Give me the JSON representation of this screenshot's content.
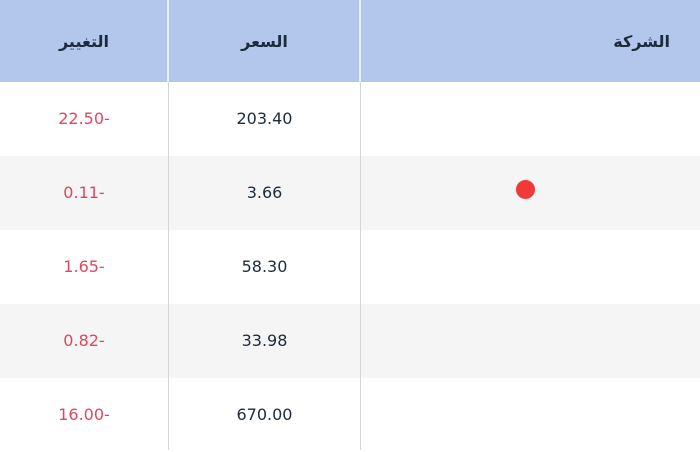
{
  "header": {
    "change": "التغيير",
    "price": "السعر",
    "company": "الشركة"
  },
  "colors": {
    "header_bg": "#b3c7ec",
    "negative": "#e0475f",
    "indicator": "#f03a3a"
  },
  "rows": [
    {
      "change": "22.50-",
      "price": "203.40",
      "company": "",
      "indicator": false
    },
    {
      "change": "0.11-",
      "price": "3.66",
      "company": "",
      "indicator": true
    },
    {
      "change": "1.65-",
      "price": "58.30",
      "company": "",
      "indicator": false
    },
    {
      "change": "0.82-",
      "price": "33.98",
      "company": "",
      "indicator": false
    },
    {
      "change": "16.00-",
      "price": "670.00",
      "company": "",
      "indicator": false
    }
  ]
}
